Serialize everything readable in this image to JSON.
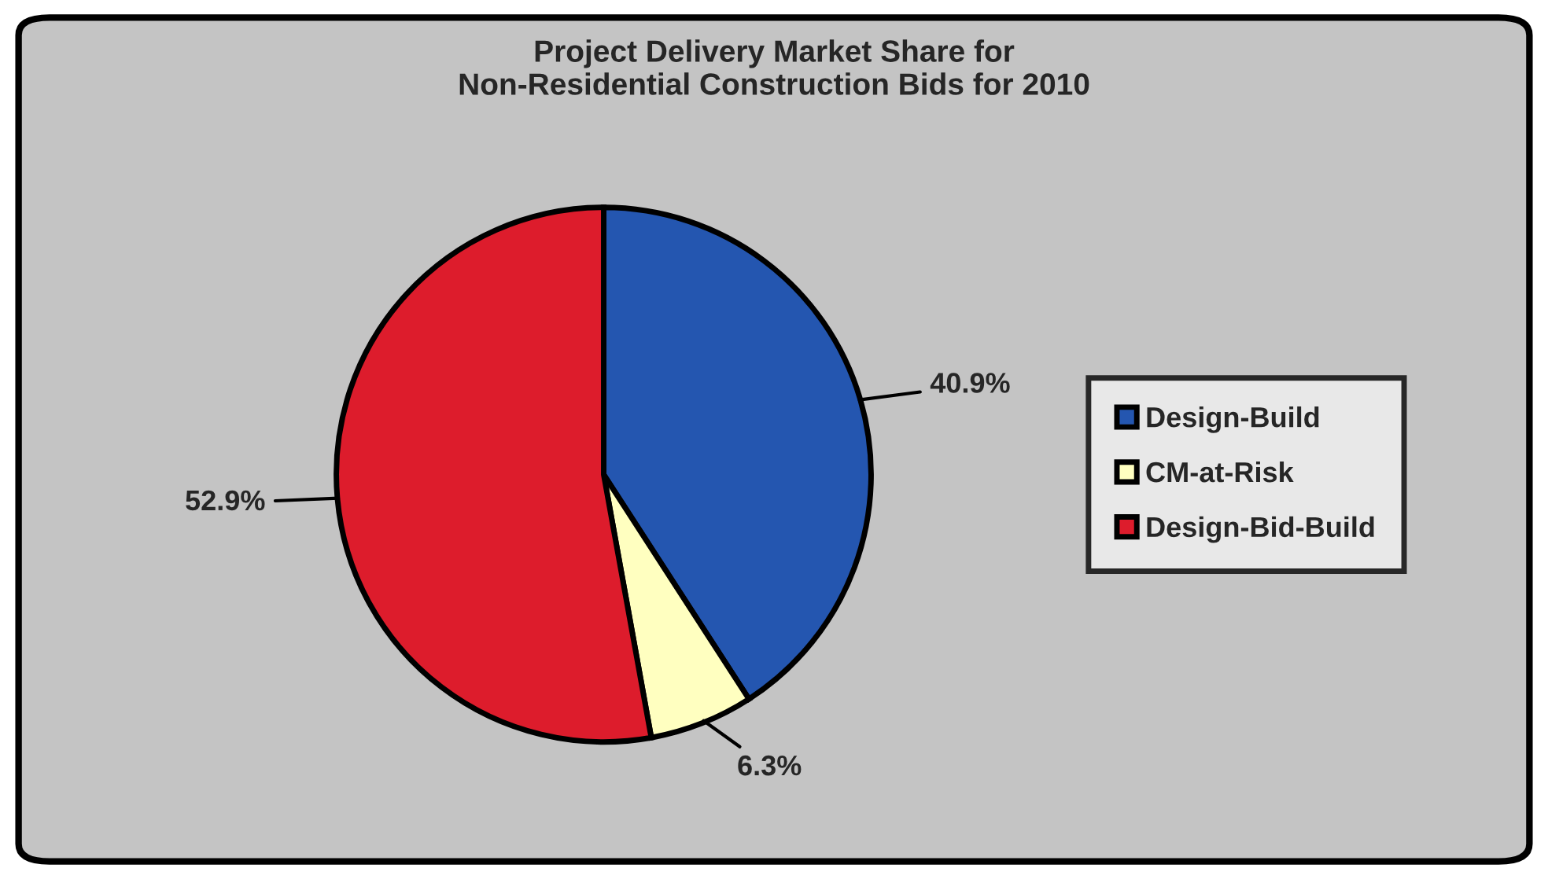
{
  "chart_data": {
    "type": "pie",
    "title": "Project Delivery Market Share for\nNon-Residential Construction Bids for 2010",
    "categories": [
      "Design-Build",
      "CM-at-Risk",
      "Design-Bid-Build"
    ],
    "values": [
      40.9,
      6.3,
      52.9
    ],
    "value_labels": [
      "40.9%",
      "6.3%",
      "52.9%"
    ],
    "colors": [
      "#2456b0",
      "#ffffc0",
      "#dd1c2c"
    ],
    "legend": "right"
  }
}
